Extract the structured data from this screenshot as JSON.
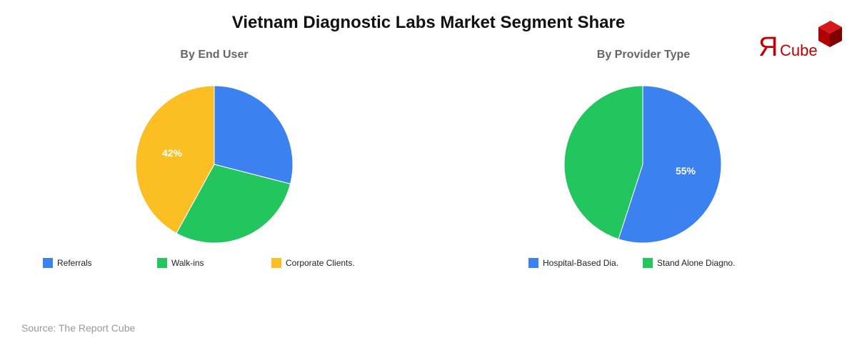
{
  "title": "Vietnam Diagnostic Labs Market Segment Share",
  "source": "Source: The Report Cube",
  "logo": {
    "glyph": "Я",
    "text": "Cube",
    "color": "#c00000"
  },
  "colors": {
    "blue": "#3b82f0",
    "green": "#22c55e",
    "yellow": "#fbbf24"
  },
  "charts": [
    {
      "subtitle": "By End User",
      "legend": [
        "Referrals",
        "Walk-ins",
        "Corporate Clients."
      ],
      "label": "42%"
    },
    {
      "subtitle": "By Provider Type",
      "legend": [
        "Hospital-Based Dia.",
        "Stand Alone Diagno."
      ],
      "label": "55%"
    }
  ],
  "chart_data": [
    {
      "type": "pie",
      "title": "By End User",
      "categories": [
        "Referrals",
        "Walk-ins",
        "Corporate Clients."
      ],
      "values": [
        29,
        29,
        42
      ],
      "colors": [
        "#3b82f0",
        "#22c55e",
        "#fbbf24"
      ],
      "data_labels": {
        "Corporate Clients.": "42%"
      },
      "legend_position": "bottom"
    },
    {
      "type": "pie",
      "title": "By Provider Type",
      "categories": [
        "Hospital-Based Dia.",
        "Stand Alone Diagno."
      ],
      "values": [
        55,
        45
      ],
      "colors": [
        "#3b82f0",
        "#22c55e"
      ],
      "data_labels": {
        "Hospital-Based Dia.": "55%"
      },
      "legend_position": "bottom"
    }
  ]
}
